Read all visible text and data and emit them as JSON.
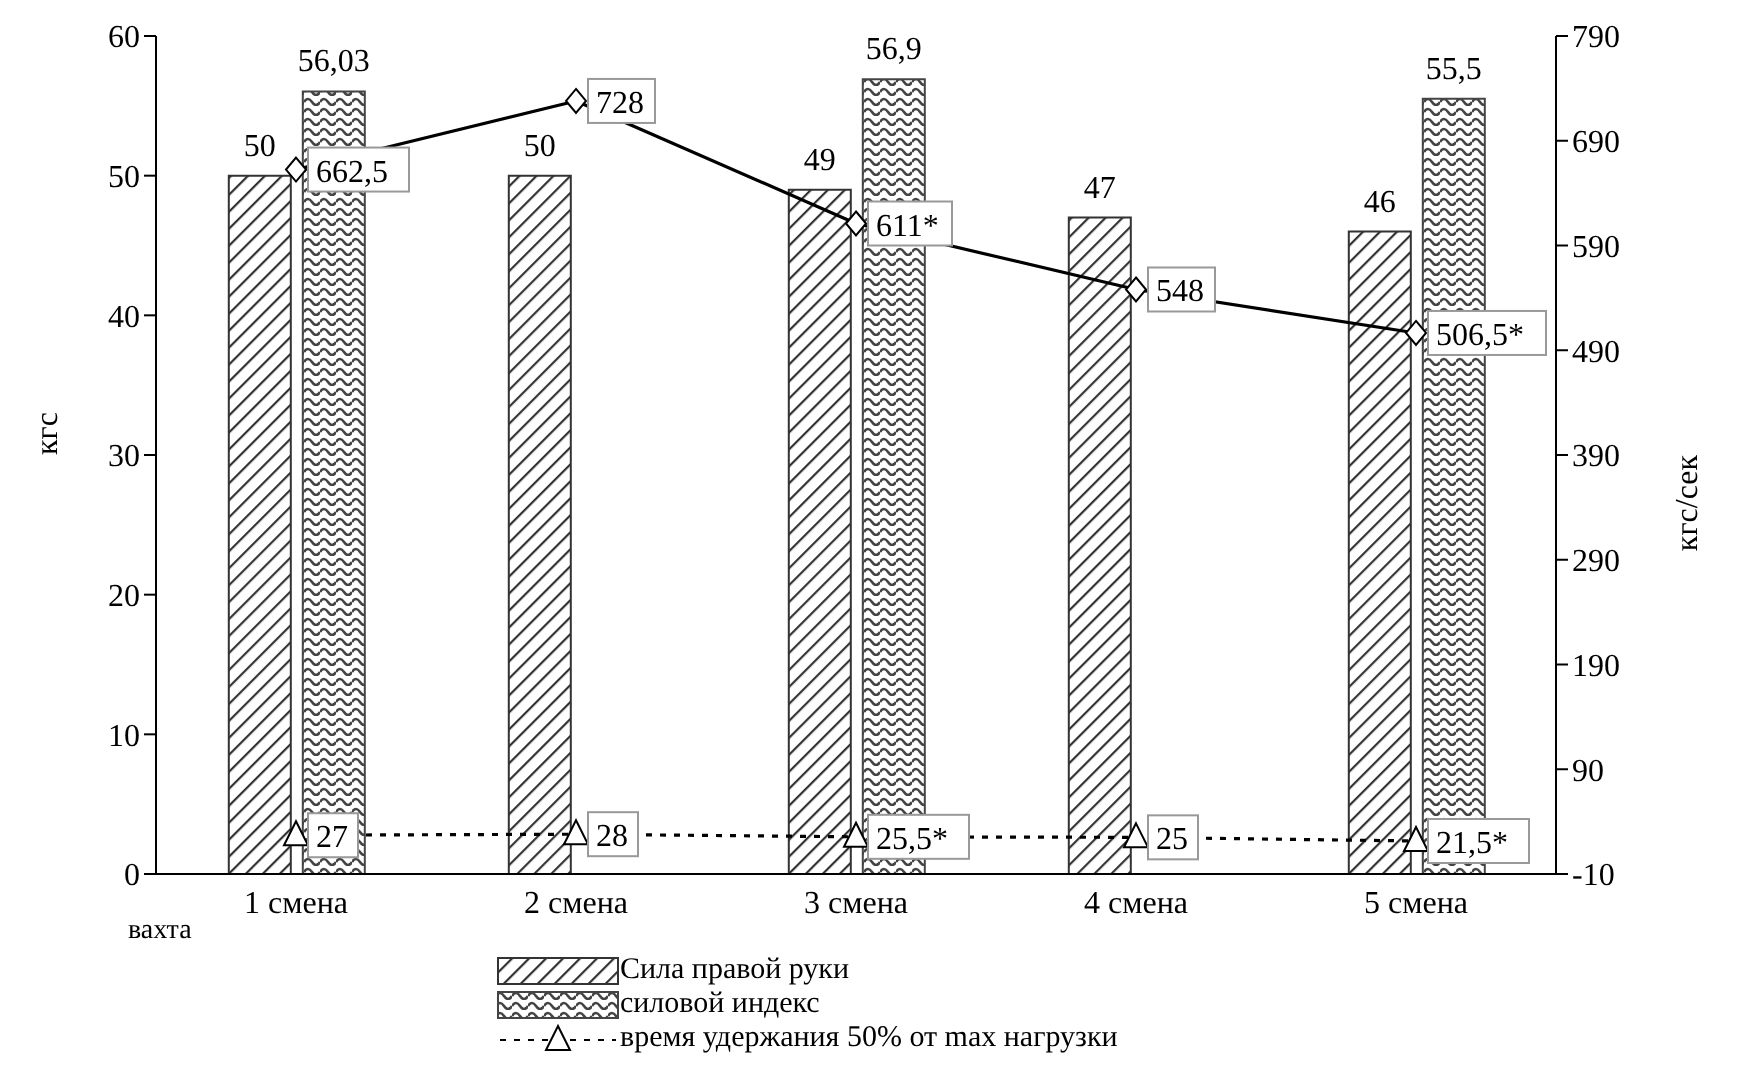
{
  "chart_data": {
    "type": "bar",
    "categories": [
      "1 смена",
      "2 смена",
      "3 смена",
      "4 смена",
      "5 смена"
    ],
    "xlabel": "вахта",
    "ylabel": "кгс",
    "y2label": "кгс/сек",
    "ylim": [
      0,
      60
    ],
    "yticks": [
      0,
      10,
      20,
      30,
      40,
      50,
      60
    ],
    "y2lim": [
      -10,
      790
    ],
    "y2ticks": [
      -10,
      90,
      190,
      290,
      390,
      490,
      590,
      690,
      790
    ],
    "grid": false,
    "legend": "bottom",
    "series": [
      {
        "name": "Сила правой руки",
        "color": "#333333",
        "values": [
          50,
          50,
          49,
          47,
          46
        ],
        "value_labels": [
          "50",
          "50",
          "49",
          "47",
          "46"
        ]
      },
      {
        "name": "силовой индекс",
        "color": "#444444",
        "values": [
          56.03,
          null,
          56.9,
          null,
          55.5
        ],
        "value_labels": [
          "56,03",
          null,
          "56,9",
          null,
          "55,5"
        ]
      },
      {
        "type": "line",
        "axis": "y2",
        "color": "#000000",
        "marker": "diamond",
        "line_style": "solid",
        "values": [
          662.5,
          728,
          611,
          548,
          506.5
        ],
        "value_labels": [
          "662,5",
          "728",
          "611*",
          "548",
          "506,5*"
        ]
      },
      {
        "name": "время удержания 50% от max нагрузки",
        "type": "line",
        "axis": "y2",
        "color": "#000000",
        "marker": "triangle",
        "line_style": "dotted",
        "values": [
          27,
          28,
          25.5,
          25,
          21.5
        ],
        "value_labels": [
          "27",
          "28",
          "25,5*",
          "25",
          "21,5*"
        ]
      }
    ]
  }
}
